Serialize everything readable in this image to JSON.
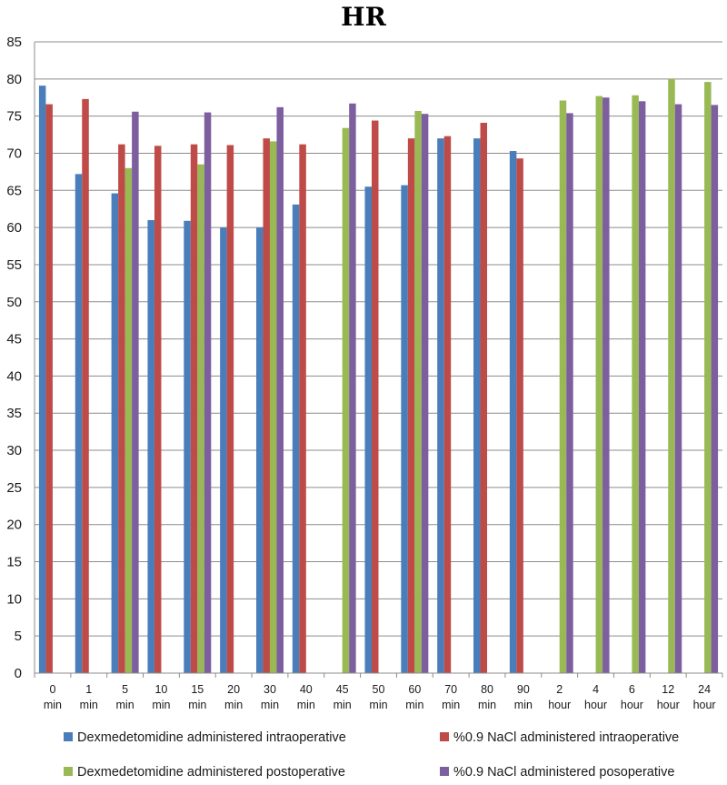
{
  "chart_data": {
    "type": "bar",
    "title": "HR",
    "xlabel": "",
    "ylabel": "",
    "ylim": [
      0,
      85
    ],
    "yticks": [
      0,
      5,
      10,
      15,
      20,
      25,
      30,
      35,
      40,
      45,
      50,
      55,
      60,
      65,
      70,
      75,
      80,
      85
    ],
    "grid": true,
    "legend_position": "bottom",
    "categories": [
      [
        "0",
        "min"
      ],
      [
        "1",
        "min"
      ],
      [
        "5",
        "min"
      ],
      [
        "10",
        "min"
      ],
      [
        "15",
        "min"
      ],
      [
        "20",
        "min"
      ],
      [
        "30",
        "min"
      ],
      [
        "40",
        "min"
      ],
      [
        "45",
        "min"
      ],
      [
        "50",
        "min"
      ],
      [
        "60",
        "min"
      ],
      [
        "70",
        "min"
      ],
      [
        "80",
        "min"
      ],
      [
        "90",
        "min"
      ],
      [
        "2",
        "hour"
      ],
      [
        "4",
        "hour"
      ],
      [
        "6",
        "hour"
      ],
      [
        "12",
        "hour"
      ],
      [
        "24",
        "hour"
      ]
    ],
    "series": [
      {
        "name": "Dexmedetomidine administered intraoperative",
        "color": "#4a7ebb",
        "values": [
          79.1,
          67.2,
          64.6,
          61.0,
          60.9,
          60.0,
          60.0,
          63.1,
          null,
          65.5,
          65.7,
          72.0,
          72.0,
          70.3,
          null,
          null,
          null,
          null,
          null
        ]
      },
      {
        "name": "%0.9 NaCl administered intraoperative",
        "color": "#be4b48",
        "values": [
          76.6,
          77.3,
          71.2,
          71.0,
          71.2,
          71.1,
          72.0,
          71.2,
          null,
          74.4,
          72.0,
          72.3,
          74.1,
          69.3,
          null,
          null,
          null,
          null,
          null
        ]
      },
      {
        "name": "Dexmedetomidine administered postoperative",
        "color": "#98b954",
        "values": [
          null,
          null,
          68.0,
          null,
          68.5,
          null,
          71.6,
          null,
          73.4,
          null,
          75.7,
          null,
          null,
          null,
          77.1,
          77.7,
          77.8,
          80.0,
          79.6
        ]
      },
      {
        "name": "%0.9 NaCl administered posoperative",
        "color": "#7d5fa0",
        "values": [
          null,
          null,
          75.6,
          null,
          75.5,
          null,
          76.2,
          null,
          76.7,
          null,
          75.3,
          null,
          null,
          null,
          75.4,
          77.5,
          77.0,
          76.6,
          76.5
        ]
      }
    ]
  }
}
